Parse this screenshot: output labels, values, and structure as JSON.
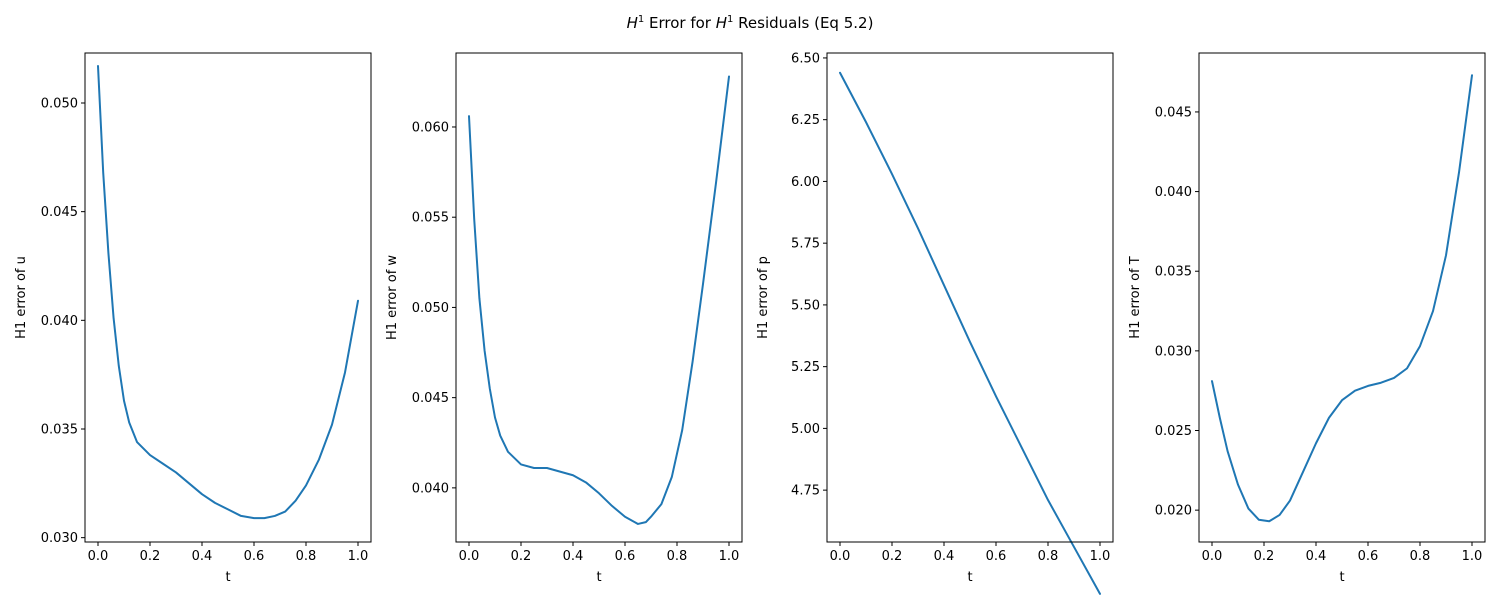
{
  "figure": {
    "suptitle": "H1 Error for H1 Residuals (Eq 5.2)",
    "suptitle_base": "H",
    "suptitle_sup": "1",
    "suptitle_mid": " Error for ",
    "suptitle_base2": "H",
    "suptitle_sup2": "1",
    "suptitle_rest": " Residuals (Eq 5.2)",
    "line_color": "#1f77b4"
  },
  "chart_data": [
    {
      "type": "line",
      "xlabel": "t",
      "ylabel": "H1 error of u",
      "xlim": [
        -0.05,
        1.05
      ],
      "ylim": [
        0.0298,
        0.0523
      ],
      "xticks": [
        "0.0",
        "0.2",
        "0.4",
        "0.6",
        "0.8",
        "1.0"
      ],
      "xtick_values": [
        0.0,
        0.2,
        0.4,
        0.6,
        0.8,
        1.0
      ],
      "yticks": [
        "0.030",
        "0.035",
        "0.040",
        "0.045",
        "0.050"
      ],
      "ytick_values": [
        0.03,
        0.035,
        0.04,
        0.045,
        0.05
      ],
      "x": [
        0.0,
        0.02,
        0.04,
        0.06,
        0.08,
        0.1,
        0.12,
        0.15,
        0.2,
        0.25,
        0.3,
        0.35,
        0.4,
        0.45,
        0.5,
        0.55,
        0.6,
        0.64,
        0.68,
        0.72,
        0.76,
        0.8,
        0.85,
        0.9,
        0.95,
        1.0
      ],
      "y": [
        0.0517,
        0.0468,
        0.0431,
        0.0401,
        0.0379,
        0.0363,
        0.0353,
        0.0344,
        0.0338,
        0.0334,
        0.033,
        0.0325,
        0.032,
        0.0316,
        0.0313,
        0.031,
        0.0309,
        0.0309,
        0.031,
        0.0312,
        0.0317,
        0.0324,
        0.0336,
        0.0352,
        0.0376,
        0.0409
      ]
    },
    {
      "type": "line",
      "xlabel": "t",
      "ylabel": "H1 error of w",
      "xlim": [
        -0.05,
        1.05
      ],
      "ylim": [
        0.037,
        0.0641
      ],
      "xticks": [
        "0.0",
        "0.2",
        "0.4",
        "0.6",
        "0.8",
        "1.0"
      ],
      "xtick_values": [
        0.0,
        0.2,
        0.4,
        0.6,
        0.8,
        1.0
      ],
      "yticks": [
        "0.040",
        "0.045",
        "0.050",
        "0.055",
        "0.060"
      ],
      "ytick_values": [
        0.04,
        0.045,
        0.05,
        0.055,
        0.06
      ],
      "x": [
        0.0,
        0.02,
        0.04,
        0.06,
        0.08,
        0.1,
        0.12,
        0.15,
        0.2,
        0.25,
        0.3,
        0.35,
        0.4,
        0.45,
        0.5,
        0.55,
        0.6,
        0.65,
        0.68,
        0.7,
        0.74,
        0.78,
        0.82,
        0.86,
        0.9,
        0.95,
        1.0
      ],
      "y": [
        0.0606,
        0.0549,
        0.0505,
        0.0476,
        0.0455,
        0.0439,
        0.0429,
        0.042,
        0.0413,
        0.0411,
        0.0411,
        0.0409,
        0.0407,
        0.0403,
        0.0397,
        0.039,
        0.0384,
        0.038,
        0.0381,
        0.0384,
        0.0391,
        0.0406,
        0.0432,
        0.047,
        0.0513,
        0.0569,
        0.0628
      ]
    },
    {
      "type": "line",
      "xlabel": "t",
      "ylabel": "H1 error of p",
      "xlim": [
        -0.05,
        1.05
      ],
      "ylim": [
        4.54,
        6.52
      ],
      "xticks": [
        "0.0",
        "0.2",
        "0.4",
        "0.6",
        "0.8",
        "1.0"
      ],
      "xtick_values": [
        0.0,
        0.2,
        0.4,
        0.6,
        0.8,
        1.0
      ],
      "yticks": [
        "4.75",
        "5.00",
        "5.25",
        "5.50",
        "5.75",
        "6.00",
        "6.25",
        "6.50"
      ],
      "ytick_values": [
        4.75,
        5.0,
        5.25,
        5.5,
        5.75,
        6.0,
        6.25,
        6.5
      ],
      "x": [
        0.0,
        0.1,
        0.2,
        0.3,
        0.4,
        0.5,
        0.6,
        0.7,
        0.8,
        0.9,
        1.0
      ],
      "y": [
        6.44,
        6.24,
        6.03,
        5.81,
        5.58,
        5.35,
        5.13,
        4.92,
        4.71,
        4.52,
        4.33
      ]
    },
    {
      "type": "line",
      "xlabel": "t",
      "ylabel": "H1 error of T",
      "xlim": [
        -0.05,
        1.05
      ],
      "ylim": [
        0.018,
        0.0487
      ],
      "xticks": [
        "0.0",
        "0.2",
        "0.4",
        "0.6",
        "0.8",
        "1.0"
      ],
      "xtick_values": [
        0.0,
        0.2,
        0.4,
        0.6,
        0.8,
        1.0
      ],
      "yticks": [
        "0.020",
        "0.025",
        "0.030",
        "0.035",
        "0.040",
        "0.045"
      ],
      "ytick_values": [
        0.02,
        0.025,
        0.03,
        0.035,
        0.04,
        0.045
      ],
      "x": [
        0.0,
        0.03,
        0.06,
        0.1,
        0.14,
        0.18,
        0.22,
        0.26,
        0.3,
        0.35,
        0.4,
        0.45,
        0.5,
        0.55,
        0.6,
        0.65,
        0.7,
        0.75,
        0.8,
        0.85,
        0.9,
        0.95,
        1.0
      ],
      "y": [
        0.0281,
        0.0258,
        0.0237,
        0.0216,
        0.0201,
        0.0194,
        0.0193,
        0.0197,
        0.0206,
        0.0224,
        0.0242,
        0.0258,
        0.0269,
        0.0275,
        0.0278,
        0.028,
        0.0283,
        0.0289,
        0.0303,
        0.0325,
        0.036,
        0.0412,
        0.0473
      ]
    }
  ]
}
